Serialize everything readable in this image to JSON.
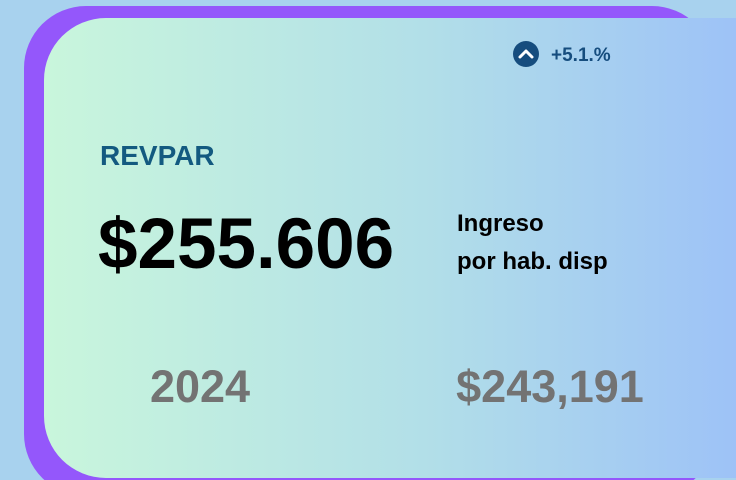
{
  "card": {
    "change": "+5.1.%",
    "title": "REVPAR",
    "value": "$255.606",
    "description": [
      "Ingreso",
      "por hab. disp"
    ],
    "comparison": {
      "year": "2024",
      "value": "$243,191"
    }
  }
}
